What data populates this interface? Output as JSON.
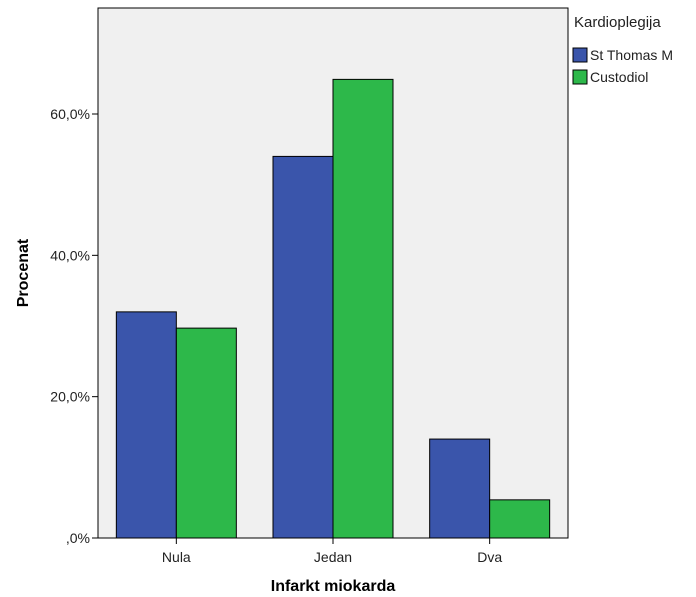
{
  "chart_data": {
    "type": "bar",
    "xlabel": "Infarkt miokarda",
    "ylabel": "Procenat",
    "categories": [
      "Nula",
      "Jedan",
      "Dva"
    ],
    "ylim": [
      0,
      75
    ],
    "yticks": [
      0,
      20,
      40,
      60
    ],
    "ytick_labels": [
      ",0%",
      "20,0%",
      "40,0%",
      "60,0%"
    ],
    "legend": {
      "title": "Kardioplegija",
      "position": "right"
    },
    "series": [
      {
        "name": "St Thomas M",
        "color": "#3a55ab",
        "values": [
          32.0,
          54.0,
          14.0
        ]
      },
      {
        "name": "Custodiol",
        "color": "#2db84a",
        "values": [
          29.7,
          64.9,
          5.4
        ]
      }
    ],
    "plot_background": "#f0f0f0",
    "grid": false
  }
}
